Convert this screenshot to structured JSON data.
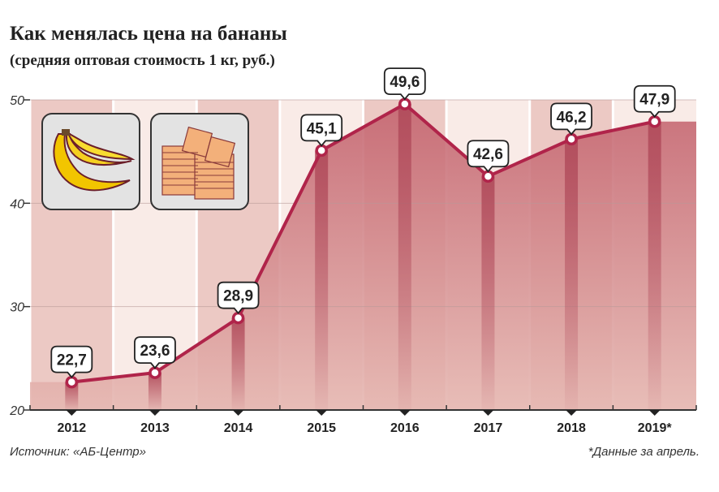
{
  "title": "Как менялась цена на бананы",
  "subtitle": "(средняя оптовая стоимость 1 кг, руб.)",
  "source": "Источник: «АБ-Центр»",
  "footnote": "*Данные за апрель.",
  "colors": {
    "line": "#b0244a",
    "area": "#c96f78",
    "stripe_dark": "#ecc9c4",
    "stripe_light": "#f9ebe7",
    "grid": "#b89a98"
  },
  "icons": [
    "banana-icon",
    "ruble-banknotes-icon"
  ],
  "chart_data": {
    "type": "line",
    "categories": [
      "2012",
      "2013",
      "2014",
      "2015",
      "2016",
      "2017",
      "2018",
      "2019*"
    ],
    "values": [
      22.7,
      23.6,
      28.9,
      45.1,
      49.6,
      42.6,
      46.2,
      47.9
    ],
    "value_labels": [
      "22,7",
      "23,6",
      "28,9",
      "45,1",
      "49,6",
      "42,6",
      "46,2",
      "47,9"
    ],
    "ylim": [
      20,
      50
    ],
    "yticks": [
      "20",
      "30",
      "40",
      "50"
    ],
    "ytick_values": [
      20,
      30,
      40,
      50
    ],
    "grid": true,
    "fill": "area"
  }
}
